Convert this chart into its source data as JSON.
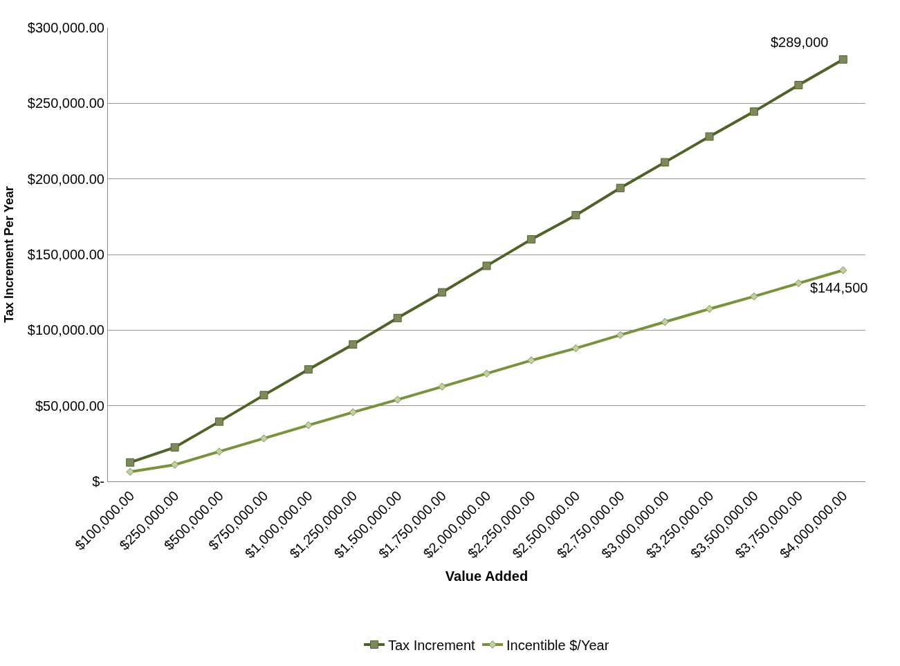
{
  "chart_data": {
    "type": "line",
    "xlabel": "Value Added",
    "ylabel": "Tax Increment Per Year",
    "categories": [
      "$100,000.00",
      "$250,000.00",
      "$500,000.00",
      "$750,000.00",
      "$1,000,000.00",
      "$1,250,000.00",
      "$1,500,000.00",
      "$1,750,000.00",
      "$2,000,000.00",
      "$2,250,000.00",
      "$2,500,000.00",
      "$2,750,000.00",
      "$3,000,000.00",
      "$3,250,000.00",
      "$3,500,000.00",
      "$3,750,000.00",
      "$4,000,000.00"
    ],
    "series": [
      {
        "name": "Tax Increment",
        "color": "#4f6228",
        "marker": "square",
        "values": [
          12500,
          22500,
          39500,
          57000,
          74000,
          90500,
          108000,
          125000,
          142500,
          160000,
          176000,
          194000,
          211000,
          228000,
          244500,
          262000,
          279000
        ]
      },
      {
        "name": "Incentible $/Year",
        "color": "#77933c",
        "marker": "diamond",
        "values": [
          6300,
          11000,
          19700,
          28400,
          37100,
          45700,
          54000,
          62600,
          71300,
          80000,
          88000,
          96800,
          105400,
          114000,
          122300,
          131000,
          139600
        ]
      }
    ],
    "annotations": [
      "$289,000",
      "$144,500"
    ],
    "ylim": [
      0,
      300000
    ],
    "yticks": [
      {
        "value": 0,
        "label": "$-"
      },
      {
        "value": 50000,
        "label": "$50,000.00"
      },
      {
        "value": 100000,
        "label": "$100,000.00"
      },
      {
        "value": 150000,
        "label": "$150,000.00"
      },
      {
        "value": 200000,
        "label": "$200,000.00"
      },
      {
        "value": 250000,
        "label": "$250,000.00"
      },
      {
        "value": 300000,
        "label": "$300,000.00"
      }
    ],
    "grid": "y",
    "legend": "bottom"
  }
}
